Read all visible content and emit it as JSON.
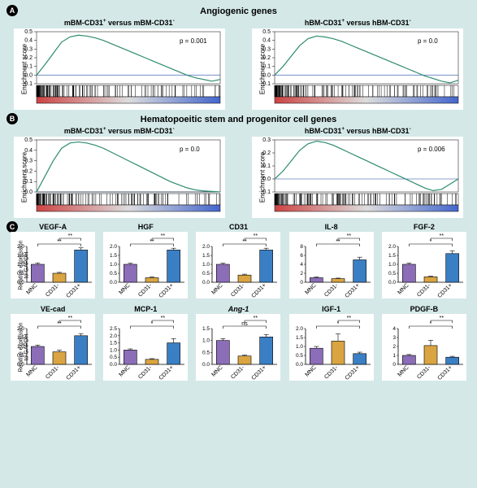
{
  "background_color": "#d4e8e8",
  "panel_bg": "#ffffff",
  "sectionA": {
    "label": "A",
    "title": "Angiogenic genes",
    "left": {
      "title_pre": "mBM-CD31",
      "title_sup1": "+",
      "title_mid": " versus mBM-CD31",
      "title_sup2": "-",
      "ylabel": "Enrichment score",
      "pvalue": "p = 0.001",
      "yticks": [
        -0.1,
        0.0,
        0.1,
        0.2,
        0.3,
        0.4,
        0.5
      ],
      "curve": [
        0.0,
        0.12,
        0.25,
        0.38,
        0.44,
        0.46,
        0.45,
        0.43,
        0.4,
        0.36,
        0.32,
        0.28,
        0.24,
        0.2,
        0.16,
        0.12,
        0.08,
        0.04,
        0.0,
        -0.03,
        -0.05,
        -0.07,
        -0.05
      ],
      "line_color": "#2e8b6f",
      "zero_line_color": "#6080c0"
    },
    "right": {
      "title_pre": "hBM-CD31",
      "title_sup1": "+",
      "title_mid": " versus hBM-CD31",
      "title_sup2": "-",
      "ylabel": "Enrichment score",
      "pvalue": "p = 0.0",
      "yticks": [
        -0.1,
        0.0,
        0.1,
        0.2,
        0.3,
        0.4,
        0.5
      ],
      "curve": [
        0.0,
        0.1,
        0.22,
        0.34,
        0.42,
        0.45,
        0.44,
        0.42,
        0.39,
        0.35,
        0.31,
        0.27,
        0.23,
        0.19,
        0.15,
        0.11,
        0.07,
        0.03,
        -0.01,
        -0.04,
        -0.07,
        -0.09,
        -0.06
      ],
      "line_color": "#2e8b6f",
      "zero_line_color": "#6080c0"
    }
  },
  "sectionB": {
    "label": "B",
    "title": "Hematopoeitic stem and progenitor cell genes",
    "left": {
      "title_pre": "mBM-CD31",
      "title_sup1": "+",
      "title_mid": " versus mBM-CD31",
      "title_sup2": "-",
      "ylabel": "Enrichment score",
      "pvalue": "p = 0.0",
      "yticks": [
        0.0,
        0.1,
        0.2,
        0.3,
        0.4,
        0.5
      ],
      "curve": [
        0.0,
        0.15,
        0.3,
        0.42,
        0.47,
        0.48,
        0.47,
        0.45,
        0.42,
        0.38,
        0.34,
        0.3,
        0.26,
        0.22,
        0.18,
        0.14,
        0.1,
        0.07,
        0.04,
        0.02,
        0.01,
        0.005,
        0.0
      ],
      "line_color": "#2e8b6f",
      "zero_line_color": "#6080c0"
    },
    "right": {
      "title_pre": "hBM-CD31",
      "title_sup1": "+",
      "title_mid": " versus hBM-CD31",
      "title_sup2": "-",
      "ylabel": "Enrichment score",
      "pvalue": "p = 0.006",
      "yticks": [
        -0.1,
        0.0,
        0.1,
        0.2,
        0.3
      ],
      "curve": [
        0.0,
        0.06,
        0.14,
        0.22,
        0.27,
        0.29,
        0.28,
        0.26,
        0.23,
        0.2,
        0.17,
        0.14,
        0.11,
        0.08,
        0.05,
        0.02,
        -0.01,
        -0.04,
        -0.07,
        -0.09,
        -0.08,
        -0.04,
        0.0
      ],
      "line_color": "#2e8b6f",
      "zero_line_color": "#6080c0"
    }
  },
  "sectionC": {
    "label": "C",
    "ylabel": "Relative expression\nto GAPDH",
    "categories": [
      "MNC",
      "CD31-",
      "CD31+"
    ],
    "bar_colors": [
      "#8b6db8",
      "#d9a441",
      "#3a7fc4"
    ],
    "bar_border": "#000000",
    "error_color": "#000000",
    "charts": [
      {
        "title": "VEGF-A",
        "ymax": 2.0,
        "ystep": 0.5,
        "vals": [
          1.0,
          0.5,
          1.8
        ],
        "errs": [
          0.08,
          0.05,
          0.12
        ],
        "sig": [
          [
            "**",
            0,
            2
          ],
          [
            "**",
            1,
            2
          ]
        ]
      },
      {
        "title": "HGF",
        "ymax": 2.0,
        "ystep": 0.5,
        "vals": [
          1.0,
          0.25,
          1.8
        ],
        "errs": [
          0.06,
          0.04,
          0.1
        ],
        "sig": [
          [
            "**",
            0,
            2
          ],
          [
            "**",
            1,
            2
          ]
        ]
      },
      {
        "title": "CD31",
        "ymax": 2.0,
        "ystep": 0.5,
        "vals": [
          1.0,
          0.4,
          1.8
        ],
        "errs": [
          0.06,
          0.05,
          0.1
        ],
        "sig": [
          [
            "**",
            0,
            2
          ],
          [
            "**",
            1,
            2
          ]
        ]
      },
      {
        "title": "IL-8",
        "ymax": 8,
        "ystep": 2,
        "vals": [
          1.0,
          0.8,
          5.0
        ],
        "errs": [
          0.15,
          0.12,
          0.6
        ],
        "sig": [
          [
            "**",
            0,
            2
          ],
          [
            "**",
            1,
            2
          ]
        ]
      },
      {
        "title": "FGF-2",
        "ymax": 2.0,
        "ystep": 0.5,
        "vals": [
          1.0,
          0.3,
          1.6
        ],
        "errs": [
          0.07,
          0.04,
          0.15
        ],
        "sig": [
          [
            "*",
            0,
            2
          ],
          [
            "**",
            1,
            2
          ]
        ]
      },
      {
        "title": "VE-cad",
        "ymax": 2.0,
        "ystep": 0.5,
        "vals": [
          1.0,
          0.7,
          1.6
        ],
        "errs": [
          0.08,
          0.1,
          0.12
        ],
        "sig": [
          [
            "**",
            0,
            2
          ],
          [
            "**",
            1,
            2
          ]
        ]
      },
      {
        "title": "MCP-1",
        "ymax": 2.5,
        "ystep": 0.5,
        "vals": [
          1.0,
          0.35,
          1.5
        ],
        "errs": [
          0.08,
          0.05,
          0.3
        ],
        "sig": [
          [
            "*",
            0,
            2
          ],
          [
            "**",
            1,
            2
          ]
        ]
      },
      {
        "title": "Ang-1",
        "italic": true,
        "ymax": 1.5,
        "ystep": 0.5,
        "vals": [
          1.0,
          0.35,
          1.15
        ],
        "errs": [
          0.08,
          0.04,
          0.1
        ],
        "sig": [
          [
            "ns",
            0,
            2
          ],
          [
            "**",
            1,
            2
          ]
        ]
      },
      {
        "title": "IGF-1",
        "ymax": 2.0,
        "ystep": 0.5,
        "vals": [
          0.9,
          1.3,
          0.6
        ],
        "errs": [
          0.1,
          0.4,
          0.08
        ],
        "sig": [
          [
            "*",
            0,
            2
          ],
          [
            "**",
            1,
            2
          ]
        ]
      },
      {
        "title": "PDGF-B",
        "ymax": 4,
        "ystep": 1,
        "vals": [
          1.0,
          2.1,
          0.8
        ],
        "errs": [
          0.1,
          0.6,
          0.1
        ],
        "sig": [
          [
            "*",
            0,
            2
          ],
          [
            "**",
            1,
            2
          ]
        ]
      }
    ]
  }
}
